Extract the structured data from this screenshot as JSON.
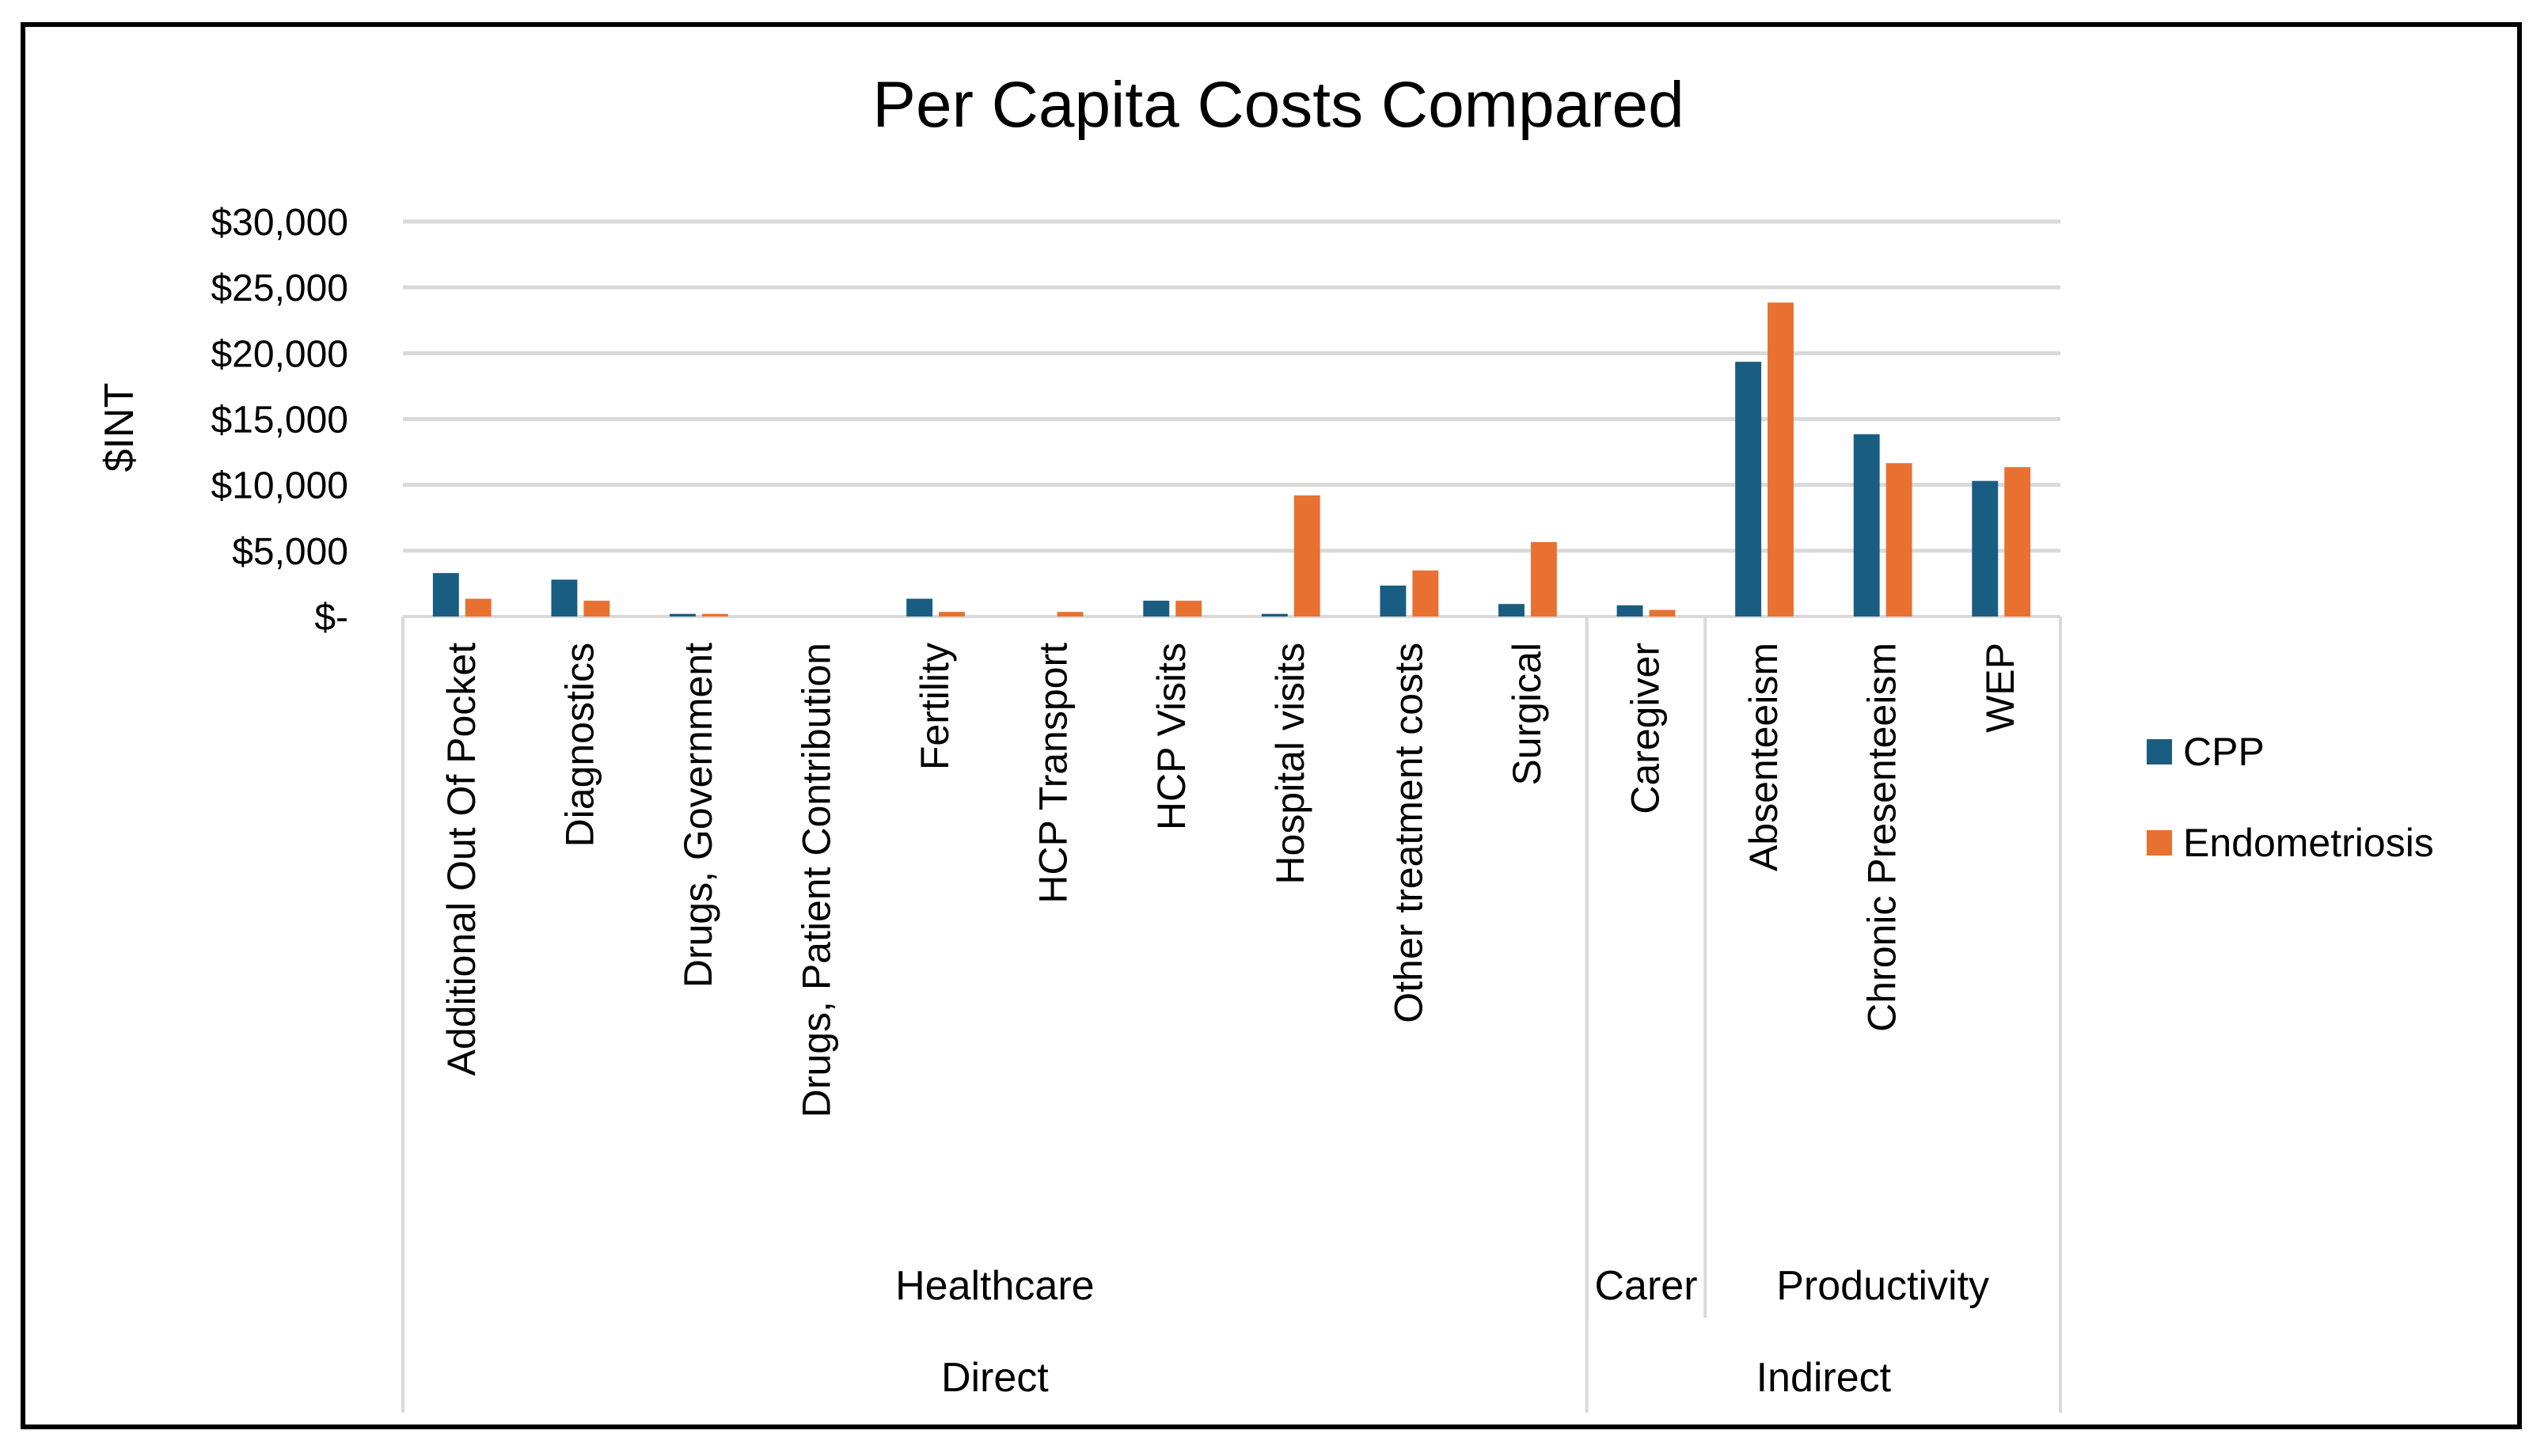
{
  "chart_data": {
    "type": "bar",
    "title": "Per Capita Costs Compared",
    "xlabel": "",
    "ylabel": "$INT",
    "ylim": [
      0,
      30000
    ],
    "yticks": [
      0,
      5000,
      10000,
      15000,
      20000,
      25000,
      30000
    ],
    "ytick_labels": [
      "$-",
      "$5,000",
      "$10,000",
      "$15,000",
      "$20,000",
      "$25,000",
      "$30,000"
    ],
    "grid": true,
    "legend_position": "right",
    "categories": [
      "Additional Out Of Pocket",
      "Diagnostics",
      "Drugs, Government",
      "Drugs, Patient Contribution",
      "Fertility",
      "HCP Transport",
      "HCP Visits",
      "Hospital visits",
      "Other treatment costs",
      "Surgical",
      "Caregiver",
      "Absenteeism",
      "Chronic Presenteeism",
      "WEP"
    ],
    "groups_level1": [
      {
        "label": "Healthcare",
        "count": 10
      },
      {
        "label": "Carer",
        "count": 1
      },
      {
        "label": "Productivity",
        "count": 3
      }
    ],
    "groups_level2": [
      {
        "label": "Direct",
        "count": 10
      },
      {
        "label": "Indirect",
        "count": 4
      }
    ],
    "series": [
      {
        "name": "CPP",
        "color": "#1a5d82",
        "values": [
          3300,
          2800,
          200,
          0,
          1350,
          0,
          1200,
          200,
          2350,
          950,
          850,
          19350,
          13850,
          10300
        ]
      },
      {
        "name": "Endometriosis",
        "color": "#e87132",
        "values": [
          1350,
          1200,
          200,
          0,
          350,
          350,
          1200,
          9200,
          3500,
          5650,
          500,
          23850,
          11650,
          11350
        ]
      }
    ]
  }
}
